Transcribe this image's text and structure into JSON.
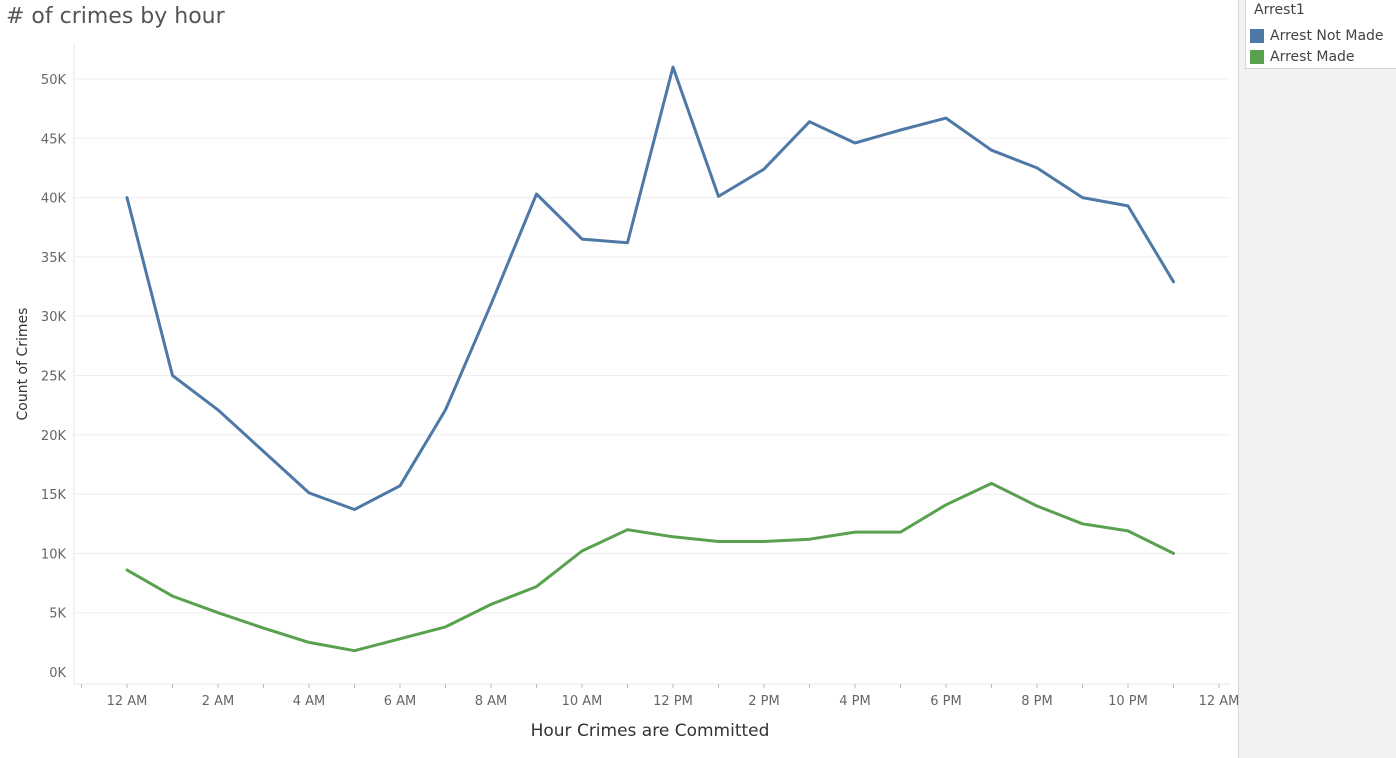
{
  "chart_data": {
    "type": "line",
    "title": "# of crimes by hour",
    "xlabel": "Hour Crimes are Committed",
    "ylabel": "Count of Crimes",
    "x": [
      0,
      1,
      2,
      3,
      4,
      5,
      6,
      7,
      8,
      9,
      10,
      11,
      12,
      13,
      14,
      15,
      16,
      17,
      18,
      19,
      20,
      21,
      22,
      23
    ],
    "x_tick_labels": [
      "12 AM",
      "2 AM",
      "4 AM",
      "6 AM",
      "8 AM",
      "10 AM",
      "12 PM",
      "2 PM",
      "4 PM",
      "6 PM",
      "8 PM",
      "10 PM",
      "12 AM"
    ],
    "y_ticks": [
      0,
      5000,
      10000,
      15000,
      20000,
      25000,
      30000,
      35000,
      40000,
      45000,
      50000
    ],
    "y_tick_labels": [
      "0K",
      "5K",
      "10K",
      "15K",
      "20K",
      "25K",
      "30K",
      "35K",
      "40K",
      "45K",
      "50K"
    ],
    "ylim": [
      0,
      53000
    ],
    "legend_title": "Arrest1",
    "legend_position": "top-right",
    "grid": true,
    "series": [
      {
        "name": "Arrest Not Made",
        "color": "#4e79a7",
        "values": [
          40000,
          25000,
          22100,
          18600,
          15100,
          13700,
          15700,
          22100,
          31000,
          40300,
          36500,
          36200,
          51000,
          40100,
          42400,
          46400,
          44600,
          45700,
          46700,
          44000,
          42500,
          40000,
          39300,
          32900
        ]
      },
      {
        "name": "Arrest Made",
        "color": "#59a14f",
        "values": [
          8600,
          6400,
          5000,
          3700,
          2500,
          1800,
          2800,
          3800,
          5700,
          7200,
          10200,
          12000,
          11400,
          11000,
          11000,
          11200,
          11800,
          11800,
          14100,
          15900,
          14000,
          12500,
          11900,
          10000
        ]
      }
    ]
  }
}
